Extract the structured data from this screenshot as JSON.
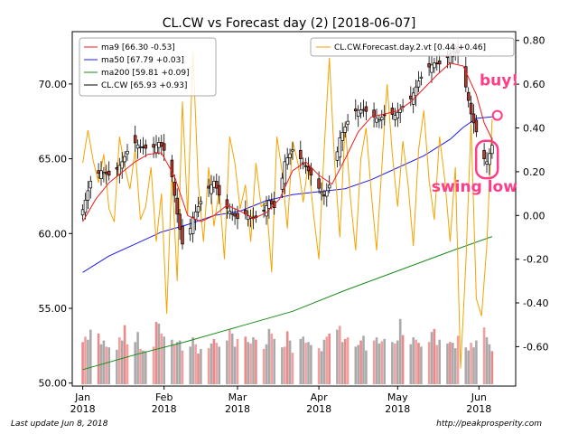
{
  "chart_data": {
    "type": "candlestick",
    "title": "CL.CW vs Forecast day (2)  [2018-06-07]",
    "left_axis": {
      "ylim": [
        49.8,
        73.5
      ],
      "ticks": [
        "50.00",
        "55.00",
        "60.00",
        "65.00",
        "70.00"
      ],
      "tick_values": [
        50,
        55,
        60,
        65,
        70
      ]
    },
    "right_axis": {
      "ylim": [
        -0.78,
        0.84
      ],
      "ticks": [
        "-0.60",
        "-0.40",
        "-0.20",
        "0.00",
        "0.20",
        "0.40",
        "0.60",
        "0.80"
      ],
      "tick_values": [
        -0.6,
        -0.4,
        -0.2,
        0.0,
        0.2,
        0.4,
        0.6,
        0.8
      ]
    },
    "x_ticks": [
      {
        "label": "Jan\n2018",
        "day": 0
      },
      {
        "label": "Feb\n2018",
        "day": 31
      },
      {
        "label": "Mar\n2018",
        "day": 59
      },
      {
        "label": "Apr\n2018",
        "day": 90
      },
      {
        "label": "May\n2018",
        "day": 120
      },
      {
        "label": "Jun\n2018",
        "day": 151
      }
    ],
    "x_range_days": [
      -4,
      165
    ],
    "legend_left": [
      {
        "name": "ma9 [66.30 -0.53]",
        "color": "#ee1c1c"
      },
      {
        "name": "ma50 [67.79 +0.03]",
        "color": "#1c1cee"
      },
      {
        "name": "ma200 [59.81 +0.09]",
        "color": "#1a8c1a"
      },
      {
        "name": "CL.CW [65.93 +0.93]",
        "color": "#000000"
      }
    ],
    "legend_right": [
      {
        "name": "CL.CW.Forecast.day.2.vt [0.44 +0.46]",
        "color": "#f5a300"
      }
    ],
    "close_checkpoints": [
      {
        "day": 0,
        "value": 61.6
      },
      {
        "day": 3,
        "value": 63.5
      },
      {
        "day": 7,
        "value": 64.2
      },
      {
        "day": 11,
        "value": 63.8
      },
      {
        "day": 15,
        "value": 64.8
      },
      {
        "day": 19,
        "value": 66.2
      },
      {
        "day": 22,
        "value": 65.8
      },
      {
        "day": 26,
        "value": 65.6
      },
      {
        "day": 29,
        "value": 66.1
      },
      {
        "day": 32,
        "value": 65.3
      },
      {
        "day": 34,
        "value": 63.8
      },
      {
        "day": 36,
        "value": 61.3
      },
      {
        "day": 38,
        "value": 59.3
      },
      {
        "day": 40,
        "value": 59.6
      },
      {
        "day": 42,
        "value": 61.1
      },
      {
        "day": 44,
        "value": 61.8
      },
      {
        "day": 47,
        "value": 62.8
      },
      {
        "day": 50,
        "value": 63.5
      },
      {
        "day": 53,
        "value": 62.1
      },
      {
        "day": 56,
        "value": 61.5
      },
      {
        "day": 59,
        "value": 61.0
      },
      {
        "day": 62,
        "value": 61.3
      },
      {
        "day": 65,
        "value": 61.0
      },
      {
        "day": 68,
        "value": 61.2
      },
      {
        "day": 71,
        "value": 62.2
      },
      {
        "day": 74,
        "value": 61.5
      },
      {
        "day": 77,
        "value": 64.8
      },
      {
        "day": 80,
        "value": 65.6
      },
      {
        "day": 83,
        "value": 65.0
      },
      {
        "day": 86,
        "value": 64.2
      },
      {
        "day": 89,
        "value": 63.3
      },
      {
        "day": 92,
        "value": 62.5
      },
      {
        "day": 95,
        "value": 63.6
      },
      {
        "day": 98,
        "value": 66.4
      },
      {
        "day": 101,
        "value": 67.5
      },
      {
        "day": 104,
        "value": 68.2
      },
      {
        "day": 107,
        "value": 68.3
      },
      {
        "day": 110,
        "value": 67.9
      },
      {
        "day": 113,
        "value": 67.6
      },
      {
        "day": 116,
        "value": 68.1
      },
      {
        "day": 119,
        "value": 67.9
      },
      {
        "day": 122,
        "value": 68.5
      },
      {
        "day": 125,
        "value": 69.0
      },
      {
        "day": 128,
        "value": 70.2
      },
      {
        "day": 131,
        "value": 71.0
      },
      {
        "day": 134,
        "value": 71.4
      },
      {
        "day": 137,
        "value": 71.3
      },
      {
        "day": 140,
        "value": 72.0
      },
      {
        "day": 142,
        "value": 72.3
      },
      {
        "day": 144,
        "value": 71.8
      },
      {
        "day": 146,
        "value": 69.8
      },
      {
        "day": 148,
        "value": 68.0
      },
      {
        "day": 150,
        "value": 66.8
      },
      {
        "day": 152,
        "value": 65.2
      },
      {
        "day": 154,
        "value": 64.8
      },
      {
        "day": 156,
        "value": 65.9
      }
    ],
    "ma9": [
      {
        "day": 0,
        "value": 60.8
      },
      {
        "day": 5,
        "value": 62.3
      },
      {
        "day": 10,
        "value": 63.4
      },
      {
        "day": 15,
        "value": 64.1
      },
      {
        "day": 20,
        "value": 64.8
      },
      {
        "day": 25,
        "value": 65.3
      },
      {
        "day": 30,
        "value": 65.4
      },
      {
        "day": 35,
        "value": 63.8
      },
      {
        "day": 40,
        "value": 61.2
      },
      {
        "day": 45,
        "value": 60.8
      },
      {
        "day": 50,
        "value": 61.2
      },
      {
        "day": 55,
        "value": 61.9
      },
      {
        "day": 60,
        "value": 61.5
      },
      {
        "day": 65,
        "value": 61.0
      },
      {
        "day": 70,
        "value": 61.4
      },
      {
        "day": 75,
        "value": 62.3
      },
      {
        "day": 80,
        "value": 64.2
      },
      {
        "day": 85,
        "value": 64.8
      },
      {
        "day": 90,
        "value": 63.9
      },
      {
        "day": 95,
        "value": 63.3
      },
      {
        "day": 100,
        "value": 65.0
      },
      {
        "day": 105,
        "value": 66.8
      },
      {
        "day": 110,
        "value": 67.8
      },
      {
        "day": 115,
        "value": 68.0
      },
      {
        "day": 120,
        "value": 68.2
      },
      {
        "day": 125,
        "value": 68.8
      },
      {
        "day": 130,
        "value": 69.7
      },
      {
        "day": 135,
        "value": 70.6
      },
      {
        "day": 140,
        "value": 71.4
      },
      {
        "day": 145,
        "value": 71.2
      },
      {
        "day": 150,
        "value": 69.3
      },
      {
        "day": 153,
        "value": 67.4
      },
      {
        "day": 156,
        "value": 66.3
      }
    ],
    "ma50": [
      {
        "day": 0,
        "value": 57.4
      },
      {
        "day": 10,
        "value": 58.5
      },
      {
        "day": 20,
        "value": 59.3
      },
      {
        "day": 30,
        "value": 60.1
      },
      {
        "day": 40,
        "value": 60.6
      },
      {
        "day": 50,
        "value": 61.2
      },
      {
        "day": 60,
        "value": 61.5
      },
      {
        "day": 70,
        "value": 62.2
      },
      {
        "day": 80,
        "value": 62.6
      },
      {
        "day": 90,
        "value": 62.8
      },
      {
        "day": 100,
        "value": 63.0
      },
      {
        "day": 110,
        "value": 63.6
      },
      {
        "day": 120,
        "value": 64.4
      },
      {
        "day": 130,
        "value": 65.2
      },
      {
        "day": 140,
        "value": 66.3
      },
      {
        "day": 145,
        "value": 67.1
      },
      {
        "day": 150,
        "value": 67.7
      },
      {
        "day": 156,
        "value": 67.8
      }
    ],
    "ma200": [
      {
        "day": 0,
        "value": 50.9
      },
      {
        "day": 20,
        "value": 51.9
      },
      {
        "day": 40,
        "value": 52.8
      },
      {
        "day": 60,
        "value": 53.8
      },
      {
        "day": 80,
        "value": 54.8
      },
      {
        "day": 100,
        "value": 56.2
      },
      {
        "day": 120,
        "value": 57.5
      },
      {
        "day": 140,
        "value": 58.8
      },
      {
        "day": 156,
        "value": 59.8
      }
    ],
    "forecast": [
      {
        "day": 0,
        "value": 0.24
      },
      {
        "day": 2,
        "value": 0.39
      },
      {
        "day": 4,
        "value": 0.25
      },
      {
        "day": 6,
        "value": 0.15
      },
      {
        "day": 8,
        "value": 0.28
      },
      {
        "day": 10,
        "value": 0.03
      },
      {
        "day": 12,
        "value": -0.03
      },
      {
        "day": 14,
        "value": 0.36
      },
      {
        "day": 16,
        "value": 0.22
      },
      {
        "day": 18,
        "value": 0.12
      },
      {
        "day": 20,
        "value": 0.3
      },
      {
        "day": 22,
        "value": -0.02
      },
      {
        "day": 24,
        "value": 0.04
      },
      {
        "day": 26,
        "value": 0.22
      },
      {
        "day": 28,
        "value": -0.12
      },
      {
        "day": 30,
        "value": 0.1
      },
      {
        "day": 32,
        "value": -0.45
      },
      {
        "day": 34,
        "value": 0.2
      },
      {
        "day": 36,
        "value": -0.3
      },
      {
        "day": 38,
        "value": 0.52
      },
      {
        "day": 40,
        "value": 0.0
      },
      {
        "day": 42,
        "value": 0.75
      },
      {
        "day": 44,
        "value": 0.15
      },
      {
        "day": 46,
        "value": -0.12
      },
      {
        "day": 48,
        "value": 0.22
      },
      {
        "day": 50,
        "value": -0.05
      },
      {
        "day": 52,
        "value": 0.12
      },
      {
        "day": 54,
        "value": -0.2
      },
      {
        "day": 56,
        "value": 0.36
      },
      {
        "day": 58,
        "value": 0.24
      },
      {
        "day": 60,
        "value": 0.03
      },
      {
        "day": 62,
        "value": 0.14
      },
      {
        "day": 64,
        "value": -0.12
      },
      {
        "day": 66,
        "value": 0.24
      },
      {
        "day": 68,
        "value": 0.04
      },
      {
        "day": 70,
        "value": 0.06
      },
      {
        "day": 72,
        "value": -0.26
      },
      {
        "day": 74,
        "value": 0.36
      },
      {
        "day": 76,
        "value": 0.2
      },
      {
        "day": 78,
        "value": -0.06
      },
      {
        "day": 80,
        "value": 0.34
      },
      {
        "day": 82,
        "value": 0.24
      },
      {
        "day": 84,
        "value": 0.06
      },
      {
        "day": 86,
        "value": 0.24
      },
      {
        "day": 88,
        "value": 0.0
      },
      {
        "day": 90,
        "value": -0.2
      },
      {
        "day": 92,
        "value": 0.3
      },
      {
        "day": 94,
        "value": 0.72
      },
      {
        "day": 96,
        "value": 0.24
      },
      {
        "day": 98,
        "value": -0.1
      },
      {
        "day": 100,
        "value": 0.42
      },
      {
        "day": 102,
        "value": 0.08
      },
      {
        "day": 104,
        "value": -0.16
      },
      {
        "day": 106,
        "value": 0.26
      },
      {
        "day": 108,
        "value": 0.4
      },
      {
        "day": 110,
        "value": 0.1
      },
      {
        "day": 112,
        "value": -0.16
      },
      {
        "day": 114,
        "value": 0.22
      },
      {
        "day": 116,
        "value": 0.6
      },
      {
        "day": 118,
        "value": 0.28
      },
      {
        "day": 120,
        "value": 0.04
      },
      {
        "day": 122,
        "value": 0.34
      },
      {
        "day": 124,
        "value": 0.14
      },
      {
        "day": 126,
        "value": -0.14
      },
      {
        "day": 128,
        "value": 0.3
      },
      {
        "day": 130,
        "value": 0.48
      },
      {
        "day": 132,
        "value": 0.16
      },
      {
        "day": 134,
        "value": -0.02
      },
      {
        "day": 136,
        "value": 0.36
      },
      {
        "day": 138,
        "value": 0.16
      },
      {
        "day": 140,
        "value": -0.12
      },
      {
        "day": 142,
        "value": 0.22
      },
      {
        "day": 144,
        "value": -0.7
      },
      {
        "day": 146,
        "value": -0.22
      },
      {
        "day": 148,
        "value": 0.42
      },
      {
        "day": 150,
        "value": -0.38
      },
      {
        "day": 152,
        "value": -0.46
      },
      {
        "day": 154,
        "value": -0.14
      },
      {
        "day": 156,
        "value": 0.44
      }
    ],
    "volume": [
      0.55,
      0.62,
      0.58,
      0.71,
      0.66,
      0.52,
      0.57,
      0.49,
      0.48,
      0.45,
      0.61,
      0.57,
      0.77,
      0.52,
      0.55,
      0.68,
      0.46,
      0.44,
      0.43,
      0.49,
      0.81,
      0.79,
      0.66,
      0.62,
      0.58,
      0.52,
      0.55,
      0.57,
      0.44,
      0.49,
      0.61,
      0.52,
      0.4,
      0.46,
      0.47,
      0.53,
      0.59,
      0.54,
      0.49,
      0.57,
      0.71,
      0.66,
      0.49,
      0.59,
      0.62,
      0.55,
      0.53,
      0.61,
      0.58,
      0.46,
      0.52,
      0.72,
      0.66,
      0.59,
      0.48,
      0.49,
      0.69,
      0.57,
      0.41,
      0.59,
      0.62,
      0.54,
      0.55,
      0.51,
      0.47,
      0.43,
      0.58,
      0.62,
      0.66,
      0.71,
      0.76,
      0.55,
      0.59,
      0.61,
      0.49,
      0.51,
      0.57,
      0.63,
      0.44,
      0.57,
      0.61,
      0.53,
      0.56,
      0.59,
      0.55,
      0.53,
      0.57,
      0.85,
      0.64,
      0.52,
      0.61,
      0.58,
      0.54,
      0.49,
      0.55,
      0.68,
      0.72,
      0.51,
      0.58,
      0.53,
      0.55,
      0.54,
      0.47,
      0.63,
      0.48,
      0.44,
      0.54,
      0.48,
      0.57,
      0.74,
      0.61,
      0.52,
      0.43,
      0.66,
      0.61,
      0.55,
      0.49,
      0.49,
      0.51,
      0.56,
      0.55,
      0.49,
      0.54,
      0.56
    ],
    "annotations": [
      {
        "text": "buy!",
        "day": 154,
        "price": 69.9
      },
      {
        "text": "swing low",
        "day": 150,
        "price": 62.8
      }
    ]
  },
  "footer": {
    "left": "Last update Jun  8, 2018",
    "right": "http://peakprosperity.com"
  }
}
